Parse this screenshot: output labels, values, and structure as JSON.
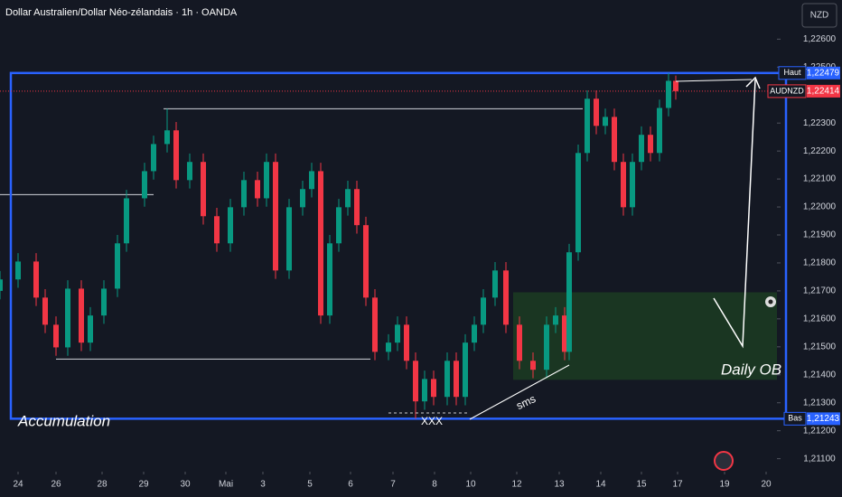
{
  "chart_data": {
    "type": "candlestick",
    "title": "Dollar Australien/Dollar Néo-zélandais · 1h · OANDA",
    "currency_button": "NZD",
    "up_color": "#089981",
    "down_color": "#f23645",
    "xlim": [
      0,
      172
    ],
    "ylim": [
      1.2106,
      1.2274
    ],
    "xticks": [
      {
        "value": 4,
        "label": "24"
      },
      {
        "value": 12.4,
        "label": "26"
      },
      {
        "value": 22.6,
        "label": "28"
      },
      {
        "value": 31.8,
        "label": "29"
      },
      {
        "value": 41,
        "label": "30"
      },
      {
        "value": 50,
        "label": "Mai"
      },
      {
        "value": 58.2,
        "label": "3"
      },
      {
        "value": 68.6,
        "label": "5"
      },
      {
        "value": 77.6,
        "label": "6"
      },
      {
        "value": 87,
        "label": "7"
      },
      {
        "value": 96.2,
        "label": "8"
      },
      {
        "value": 104.2,
        "label": "10"
      },
      {
        "value": 114.4,
        "label": "12"
      },
      {
        "value": 123.8,
        "label": "13"
      },
      {
        "value": 133,
        "label": "14"
      },
      {
        "value": 142,
        "label": "15"
      },
      {
        "value": 150,
        "label": "17"
      },
      {
        "value": 160.4,
        "label": "19"
      },
      {
        "value": 169.6,
        "label": "20"
      }
    ],
    "yticks": [
      {
        "value": 1.226,
        "label": "1,22600"
      },
      {
        "value": 1.225,
        "label": "1,22500"
      },
      {
        "value": 1.223,
        "label": "1,22300"
      },
      {
        "value": 1.222,
        "label": "1,22200"
      },
      {
        "value": 1.221,
        "label": "1,22100"
      },
      {
        "value": 1.22,
        "label": "1,22000"
      },
      {
        "value": 1.219,
        "label": "1,21900"
      },
      {
        "value": 1.218,
        "label": "1,21800"
      },
      {
        "value": 1.217,
        "label": "1,21700"
      },
      {
        "value": 1.216,
        "label": "1,21600"
      },
      {
        "value": 1.215,
        "label": "1,21500"
      },
      {
        "value": 1.214,
        "label": "1,21400"
      },
      {
        "value": 1.213,
        "label": "1,21300"
      },
      {
        "value": 1.212,
        "label": "1,21200"
      },
      {
        "value": 1.211,
        "label": "1,21100"
      }
    ],
    "x": [
      0,
      4,
      8,
      10,
      12.4,
      15,
      18,
      20,
      23,
      26,
      28,
      32,
      34,
      37,
      39,
      42,
      45,
      48,
      51,
      54,
      57,
      59,
      61,
      64,
      67,
      69,
      71,
      73,
      75,
      77,
      79,
      81,
      83,
      86,
      88,
      90,
      92,
      94,
      96,
      99,
      101,
      103,
      105,
      107,
      109.6,
      112,
      115,
      118,
      121,
      123,
      125,
      126,
      128,
      130,
      132,
      134,
      136,
      138,
      140,
      142,
      144,
      146,
      148,
      149.6
    ],
    "open": [
      1.217,
      1.21741,
      1.21805,
      1.21676,
      1.21579,
      1.21498,
      1.21708,
      1.21515,
      1.21612,
      1.21708,
      1.2187,
      1.22031,
      1.22128,
      1.22225,
      1.22274,
      1.22096,
      1.22161,
      1.21967,
      1.2187,
      1.21999,
      1.22096,
      1.22031,
      1.22161,
      1.21773,
      1.21999,
      1.22064,
      1.22128,
      1.21612,
      1.2187,
      1.21999,
      1.22064,
      1.21935,
      1.21676,
      1.21482,
      1.21515,
      1.21579,
      1.2145,
      1.21305,
      1.21385,
      1.21321,
      1.2145,
      1.21321,
      1.21515,
      1.21579,
      1.21676,
      1.21773,
      1.21579,
      1.2145,
      1.21418,
      1.21579,
      1.21612,
      1.21482,
      1.21838,
      1.22193,
      1.22387,
      1.2229,
      1.22322,
      1.22161,
      1.21999,
      1.22161,
      1.22258,
      1.22193,
      1.22354,
      1.22451
    ],
    "high": [
      1.21771,
      1.21835,
      1.21835,
      1.21706,
      1.21609,
      1.21738,
      1.21738,
      1.21642,
      1.21738,
      1.219,
      1.22061,
      1.22158,
      1.22255,
      1.22351,
      1.22304,
      1.22191,
      1.22191,
      1.21997,
      1.22029,
      1.22126,
      1.22126,
      1.22191,
      1.22191,
      1.22029,
      1.22094,
      1.22158,
      1.22158,
      1.219,
      1.22029,
      1.22094,
      1.22094,
      1.21965,
      1.21706,
      1.21545,
      1.21609,
      1.21609,
      1.2148,
      1.21415,
      1.21415,
      1.2148,
      1.2148,
      1.21545,
      1.21609,
      1.21706,
      1.21803,
      1.21803,
      1.21609,
      1.2148,
      1.21609,
      1.21642,
      1.21642,
      1.21868,
      1.22223,
      1.22417,
      1.22417,
      1.22352,
      1.22352,
      1.22191,
      1.22191,
      1.22288,
      1.22288,
      1.22384,
      1.22479,
      1.2247
    ],
    "low": [
      1.2167,
      1.21711,
      1.21646,
      1.21549,
      1.21468,
      1.21468,
      1.21485,
      1.21485,
      1.21582,
      1.21678,
      1.2184,
      1.22001,
      1.22098,
      1.22195,
      1.22066,
      1.22066,
      1.21937,
      1.2184,
      1.2184,
      1.21969,
      1.22001,
      1.22001,
      1.21743,
      1.21743,
      1.21969,
      1.22034,
      1.21582,
      1.21582,
      1.2184,
      1.21969,
      1.21905,
      1.21646,
      1.21452,
      1.21452,
      1.21485,
      1.2142,
      1.21243,
      1.21275,
      1.21291,
      1.21291,
      1.21291,
      1.21291,
      1.21485,
      1.21549,
      1.21646,
      1.21549,
      1.2142,
      1.21388,
      1.21388,
      1.21549,
      1.21452,
      1.21452,
      1.21808,
      1.22163,
      1.2226,
      1.2226,
      1.22131,
      1.21969,
      1.21969,
      1.22131,
      1.22163,
      1.22163,
      1.22324,
      1.22384
    ],
    "close": [
      1.21741,
      1.21805,
      1.21676,
      1.21579,
      1.21498,
      1.21708,
      1.21515,
      1.21612,
      1.21708,
      1.2187,
      1.22031,
      1.22128,
      1.22225,
      1.22274,
      1.22096,
      1.22161,
      1.21967,
      1.2187,
      1.21999,
      1.22096,
      1.22031,
      1.22161,
      1.21773,
      1.21999,
      1.22064,
      1.22128,
      1.21612,
      1.2187,
      1.21999,
      1.22064,
      1.21935,
      1.21676,
      1.21482,
      1.21515,
      1.21579,
      1.2145,
      1.21305,
      1.21385,
      1.21321,
      1.2145,
      1.21321,
      1.21515,
      1.21579,
      1.21676,
      1.21773,
      1.21579,
      1.2145,
      1.21418,
      1.21579,
      1.21612,
      1.21482,
      1.21838,
      1.22193,
      1.22387,
      1.2229,
      1.22322,
      1.22161,
      1.21999,
      1.22161,
      1.22258,
      1.22193,
      1.22354,
      1.22451,
      1.22414
    ],
    "price_labels": [
      {
        "name": "Haut",
        "value": 1.22479,
        "value_label": "1,22479",
        "color": "#2962ff"
      },
      {
        "name": "AUDNZD",
        "value": 1.22414,
        "value_label": "1,22414",
        "color": "#f23645"
      },
      {
        "name": "Bas",
        "value": 1.21243,
        "value_label": "1,21243",
        "color": "#2962ff"
      }
    ],
    "lines": [
      {
        "value": 1.22351,
        "from": 36.2,
        "to": 129
      },
      {
        "value": 1.21456,
        "from": 12.4,
        "to": 82
      },
      {
        "value": 1.22044,
        "from": 0,
        "to": 34
      }
    ],
    "zone": {
      "top": 1.21695,
      "bottom": 1.21382,
      "from": 113.6,
      "to": 172
    },
    "annotations": {
      "accumulation": "Accumulation",
      "xxx": "XXX",
      "sms": "sms",
      "daily_ob": "Daily OB"
    }
  }
}
